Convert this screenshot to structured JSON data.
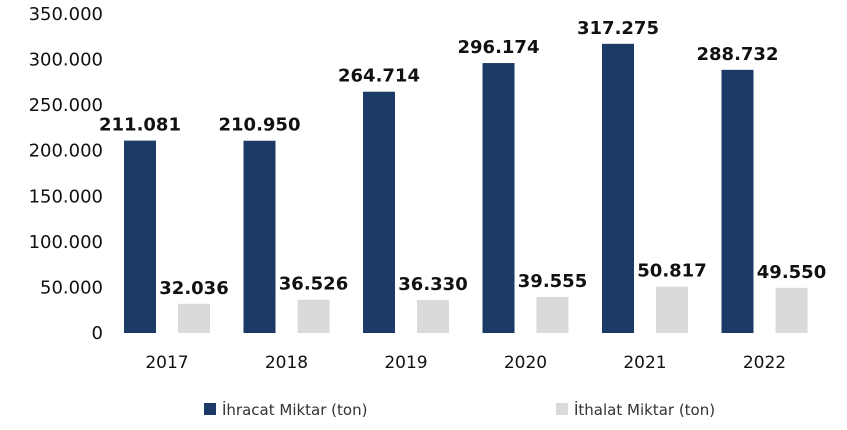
{
  "chart_data": {
    "type": "bar",
    "title": "",
    "xlabel": "",
    "ylabel": "",
    "categories": [
      "2017",
      "2018",
      "2019",
      "2020",
      "2021",
      "2022"
    ],
    "series": [
      {
        "name": "İhracat Miktar (ton)",
        "values": [
          211081,
          210950,
          264714,
          296174,
          317275,
          288732
        ],
        "labels": [
          "211.081",
          "210.950",
          "264.714",
          "296.174",
          "317.275",
          "288.732"
        ],
        "color": "#1b3a66"
      },
      {
        "name": "İthalat Miktar (ton)",
        "values": [
          32036,
          36526,
          36330,
          39555,
          50817,
          49550
        ],
        "labels": [
          "32.036",
          "36.526",
          "36.330",
          "39.555",
          "50.817",
          "49.550"
        ],
        "color": "#dadada"
      }
    ],
    "ylim": [
      0,
      350000
    ],
    "yticks": [
      0,
      50000,
      100000,
      150000,
      200000,
      250000,
      300000,
      350000
    ],
    "ytick_labels": [
      "0",
      "50.000",
      "100.000",
      "150.000",
      "200.000",
      "250.000",
      "300.000",
      "350.000"
    ],
    "grid": false,
    "legend_position": "bottom"
  }
}
